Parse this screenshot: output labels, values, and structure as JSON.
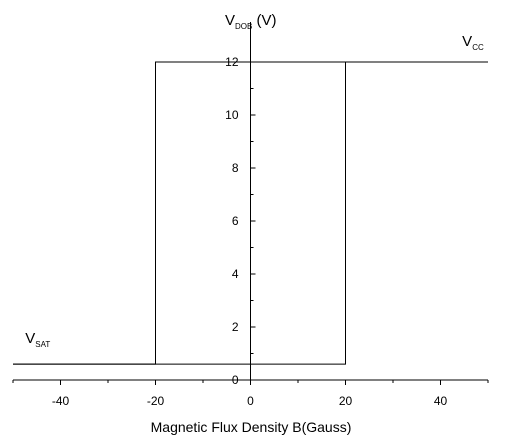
{
  "chart_data": {
    "type": "line",
    "xlabel": "Magnetic Flux Density B(Gauss)",
    "ylabel": {
      "main": "V",
      "sub": "DOB",
      "suffix": " (V)"
    },
    "xlim": [
      -50,
      50
    ],
    "ylim": [
      0,
      12
    ],
    "x_ticks": [
      -40,
      -20,
      0,
      20,
      40
    ],
    "x_tick_labels": [
      "-40",
      "-20",
      "0",
      "20",
      "40"
    ],
    "y_ticks": [
      0,
      2,
      4,
      6,
      8,
      10,
      12
    ],
    "y_tick_labels": [
      "0",
      "2",
      "4",
      "6",
      "8",
      "10",
      "12"
    ],
    "grid": false,
    "series": [
      {
        "name": "",
        "points": [
          [
            -50,
            0.6
          ],
          [
            -20,
            0.6
          ],
          [
            -20,
            12
          ],
          [
            50,
            12
          ]
        ]
      },
      {
        "name": "",
        "points": [
          [
            -50,
            0.6
          ],
          [
            20,
            0.6
          ],
          [
            20,
            12
          ],
          [
            50,
            12
          ]
        ]
      }
    ],
    "annotations": [
      {
        "main": "V",
        "sub": "SAT",
        "x": -47,
        "y": 1.4
      },
      {
        "main": "V",
        "sub": "CC",
        "x": 47,
        "y": 12.6
      }
    ],
    "colors": {
      "line": "#000000",
      "axis": "#000000"
    }
  }
}
